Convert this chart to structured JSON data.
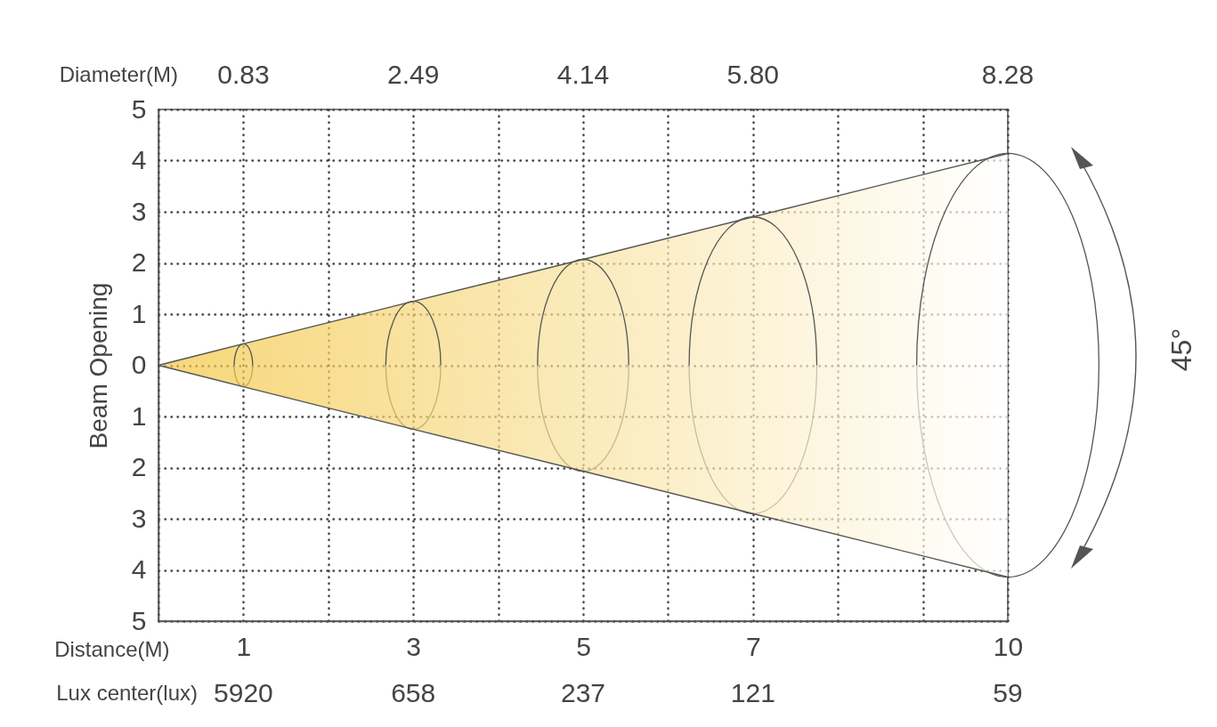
{
  "chart_data": {
    "type": "area",
    "ylabel": "Beam Opening",
    "xlabel": "Distance(M)",
    "x": [
      0,
      1,
      3,
      5,
      7,
      10
    ],
    "series": [
      {
        "color": "#f3c53e",
        "values": [
          0,
          0.42,
          1.25,
          2.07,
          2.9,
          4.14
        ]
      },
      {
        "color": "#f3c53e",
        "values": [
          0,
          -0.42,
          -1.25,
          -2.07,
          -2.9,
          -4.14
        ]
      }
    ],
    "xlim": [
      0,
      10
    ],
    "xticks": [
      {
        "value": 0,
        "label": null
      },
      1,
      {
        "value": 2,
        "label": null
      },
      3,
      {
        "value": 4,
        "label": null
      },
      5,
      {
        "value": 6,
        "label": null
      },
      7,
      {
        "value": 8,
        "label": null
      },
      {
        "value": 9,
        "label": null
      },
      10
    ],
    "ylim": [
      -5,
      5
    ],
    "yticks": [
      {
        "value": -5,
        "label": "5"
      },
      {
        "value": -4,
        "label": "4"
      },
      {
        "value": -3,
        "label": "3"
      },
      {
        "value": -2,
        "label": "2"
      },
      {
        "value": -1,
        "label": "1"
      },
      0,
      1,
      2,
      3,
      4,
      5
    ],
    "grid": true,
    "annotations": [
      "Diameter(M)",
      "0.83",
      "2.49",
      "4.14",
      "5.80",
      "8.28",
      "Lux center(lux)",
      "5920",
      "658",
      "237",
      "121",
      "59",
      "45°"
    ]
  }
}
